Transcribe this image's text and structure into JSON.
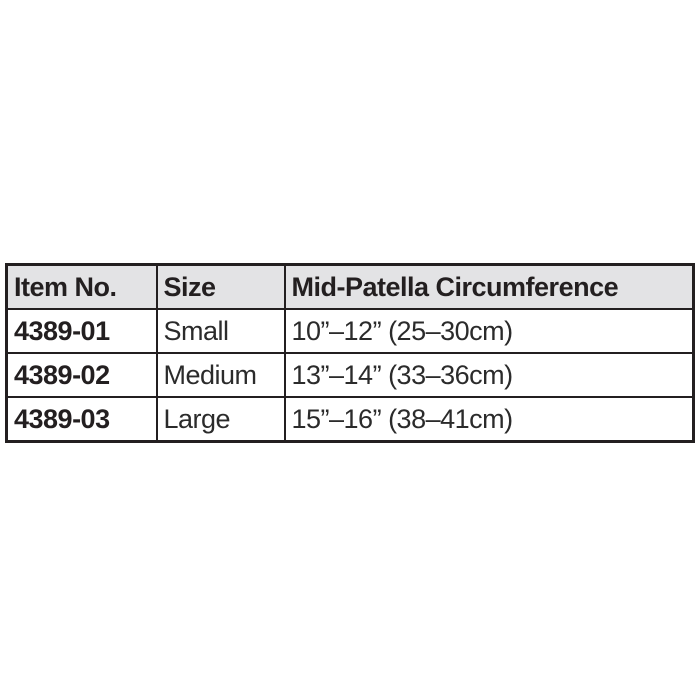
{
  "table": {
    "columns": [
      "Item No.",
      "Size",
      "Mid-Patella Circumference"
    ],
    "rows": [
      {
        "item_no": "4389-01",
        "size": "Small",
        "circumference": "10”–12” (25–30cm)"
      },
      {
        "item_no": "4389-02",
        "size": "Medium",
        "circumference": "13”–14” (33–36cm)"
      },
      {
        "item_no": "4389-03",
        "size": "Large",
        "circumference": "15”–16” (38–41cm)"
      }
    ],
    "colors": {
      "header_background": "#e3e3e5",
      "border": "#231f20",
      "text": "#231f20",
      "page_background": "#ffffff"
    }
  }
}
